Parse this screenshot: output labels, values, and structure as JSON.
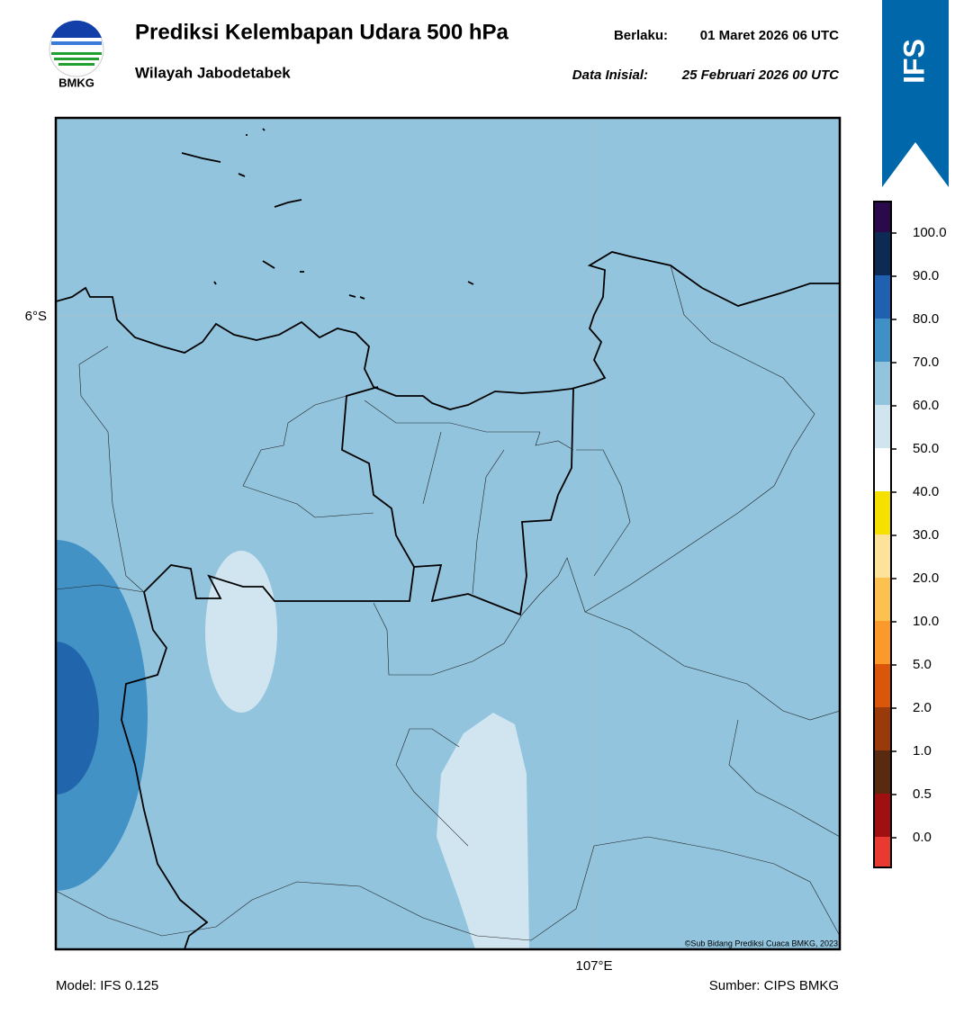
{
  "header": {
    "logo_text": "BMKG",
    "title": "Prediksi Kelembapan Udara 500 hPa",
    "subtitle": "Wilayah Jabodetabek",
    "valid_label": "Berlaku:",
    "valid_time": "01 Maret 2026 06 UTC",
    "init_label": "Data Inisial:",
    "init_time": "25 Februari 2026 00 UTC"
  },
  "banner": "IFS",
  "map": {
    "lat_label": "6°S",
    "lon_label": "107°E",
    "credit": "©Sub Bidang Prediksi Cuaca BMKG, 2023"
  },
  "colorbar": {
    "labels": [
      "100.0",
      "90.0",
      "80.0",
      "70.0",
      "60.0",
      "50.0",
      "40.0",
      "30.0",
      "20.0",
      "10.0",
      "5.0",
      "2.0",
      "1.0",
      "0.5",
      "0.0"
    ]
  },
  "footer": {
    "model": "Model: IFS 0.125",
    "source": "Sumber: CIPS BMKG"
  }
}
